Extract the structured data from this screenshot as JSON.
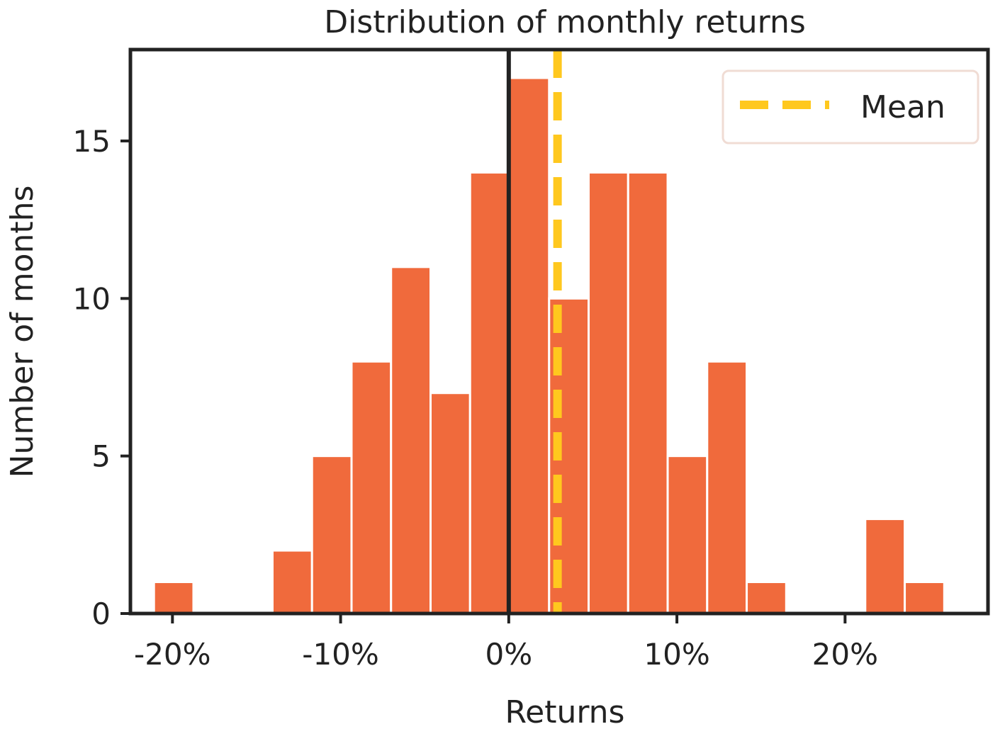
{
  "chart_data": {
    "type": "bar",
    "title": "Distribution of monthly returns",
    "xlabel": "Returns",
    "ylabel": "Number of months",
    "xlim": [
      -22.5,
      28.5
    ],
    "ylim": [
      0,
      17.9
    ],
    "bin_width": 2.35,
    "bins": [
      {
        "start": -21.1,
        "count": 1
      },
      {
        "start": -18.75,
        "count": 0
      },
      {
        "start": -16.4,
        "count": 0
      },
      {
        "start": -14.05,
        "count": 2
      },
      {
        "start": -11.7,
        "count": 5
      },
      {
        "start": -9.35,
        "count": 8
      },
      {
        "start": -7.0,
        "count": 11
      },
      {
        "start": -4.65,
        "count": 7
      },
      {
        "start": -2.3,
        "count": 14
      },
      {
        "start": 0.05,
        "count": 17
      },
      {
        "start": 2.4,
        "count": 10
      },
      {
        "start": 4.75,
        "count": 14
      },
      {
        "start": 7.1,
        "count": 14
      },
      {
        "start": 9.45,
        "count": 5
      },
      {
        "start": 11.8,
        "count": 8
      },
      {
        "start": 14.15,
        "count": 1
      },
      {
        "start": 16.5,
        "count": 0
      },
      {
        "start": 18.85,
        "count": 0
      },
      {
        "start": 21.2,
        "count": 3
      },
      {
        "start": 23.55,
        "count": 1
      }
    ],
    "mean": 2.9,
    "zero_line": 0,
    "x_ticks": [
      {
        "value": -20,
        "label": "-20%"
      },
      {
        "value": -10,
        "label": "-10%"
      },
      {
        "value": 0,
        "label": "0%"
      },
      {
        "value": 10,
        "label": "10%"
      },
      {
        "value": 20,
        "label": "20%"
      }
    ],
    "y_ticks": [
      {
        "value": 0,
        "label": "0"
      },
      {
        "value": 5,
        "label": "5"
      },
      {
        "value": 10,
        "label": "10"
      },
      {
        "value": 15,
        "label": "15"
      }
    ],
    "legend": {
      "position": "top-right",
      "entries": [
        {
          "label": "Mean",
          "style": "dashed",
          "color": "#FFC81E"
        }
      ]
    },
    "grid": false,
    "colors": {
      "bar": "#F06A3C",
      "mean_line": "#FFC81E",
      "zero_line": "#222222",
      "axes": "#222222"
    }
  }
}
